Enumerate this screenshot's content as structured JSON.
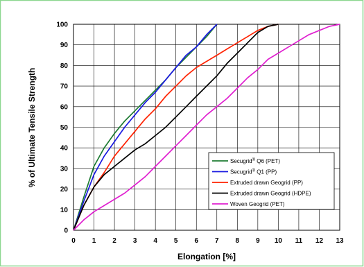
{
  "chart_data": {
    "type": "line",
    "title": "",
    "xlabel": "Elongation [%]",
    "ylabel": "% of Ultimate Tensile Strength",
    "xlim": [
      0,
      13
    ],
    "ylim": [
      0,
      100
    ],
    "xticks": [
      "0",
      "1",
      "2",
      "3",
      "4",
      "5",
      "6",
      "7",
      "8",
      "9",
      "10",
      "11",
      "12",
      "13"
    ],
    "yticks": [
      "0",
      "10",
      "20",
      "30",
      "40",
      "50",
      "60",
      "70",
      "80",
      "90",
      "100"
    ],
    "grid": true,
    "legend_position": "bottom-right",
    "legend": [
      {
        "name_main": "Secugrid",
        "name_sup": "®",
        "name_rest": " Q6 (PET)",
        "color": "#1E7B33"
      },
      {
        "name_main": "Secugrid",
        "name_sup": "®",
        "name_rest": " Q1 (PP)",
        "color": "#1A1AE0"
      },
      {
        "name_main": "Extruded drawn Geogrid (PP)",
        "name_sup": "",
        "name_rest": "",
        "color": "#FF2200"
      },
      {
        "name_main": "Extruded drawn Geogrid (HDPE)",
        "name_sup": "",
        "name_rest": "",
        "color": "#000000"
      },
      {
        "name_main": "Woven Geogrid (PET)",
        "name_sup": "",
        "name_rest": "",
        "color": "#E020D0"
      }
    ],
    "series": [
      {
        "color": "#1E7B33",
        "points": [
          [
            0,
            0
          ],
          [
            0.5,
            16
          ],
          [
            1,
            31
          ],
          [
            1.5,
            40
          ],
          [
            2,
            47
          ],
          [
            2.5,
            53
          ],
          [
            3,
            58
          ],
          [
            3.5,
            63
          ],
          [
            4,
            68
          ],
          [
            4.5,
            73
          ],
          [
            5,
            79
          ],
          [
            5.5,
            84
          ],
          [
            6,
            89
          ],
          [
            6.5,
            94
          ],
          [
            7,
            100
          ]
        ]
      },
      {
        "color": "#1A1AE0",
        "points": [
          [
            0,
            0
          ],
          [
            0.5,
            14
          ],
          [
            1,
            27
          ],
          [
            1.5,
            36
          ],
          [
            2,
            43
          ],
          [
            2.5,
            50
          ],
          [
            3,
            56
          ],
          [
            3.5,
            62
          ],
          [
            4,
            67
          ],
          [
            4.5,
            73
          ],
          [
            5,
            79
          ],
          [
            5.5,
            85
          ],
          [
            6,
            89
          ],
          [
            6.5,
            95
          ],
          [
            7,
            100
          ]
        ]
      },
      {
        "color": "#FF2200",
        "points": [
          [
            0,
            0
          ],
          [
            0.5,
            12
          ],
          [
            1,
            21
          ],
          [
            1.5,
            28
          ],
          [
            2,
            36
          ],
          [
            2.5,
            42
          ],
          [
            3,
            48
          ],
          [
            3.5,
            54
          ],
          [
            4,
            59
          ],
          [
            4.5,
            65
          ],
          [
            5,
            70
          ],
          [
            5.5,
            75
          ],
          [
            6,
            79
          ],
          [
            6.5,
            82
          ],
          [
            7,
            85
          ],
          [
            7.5,
            88
          ],
          [
            8,
            91
          ],
          [
            8.5,
            94
          ],
          [
            9,
            97
          ],
          [
            9.5,
            99
          ],
          [
            10,
            100
          ]
        ]
      },
      {
        "color": "#000000",
        "points": [
          [
            0,
            0
          ],
          [
            0.5,
            12
          ],
          [
            1,
            21
          ],
          [
            1.5,
            27
          ],
          [
            2,
            31
          ],
          [
            2.5,
            35
          ],
          [
            3,
            39
          ],
          [
            3.5,
            42
          ],
          [
            4,
            46
          ],
          [
            4.5,
            50
          ],
          [
            5,
            55
          ],
          [
            5.5,
            60
          ],
          [
            6,
            65
          ],
          [
            6.5,
            70
          ],
          [
            7,
            75
          ],
          [
            7.5,
            81
          ],
          [
            8,
            86
          ],
          [
            8.5,
            91
          ],
          [
            9,
            96
          ],
          [
            9.5,
            99
          ],
          [
            10,
            100
          ]
        ]
      },
      {
        "color": "#E020D0",
        "points": [
          [
            0,
            0
          ],
          [
            0.5,
            5
          ],
          [
            1,
            9
          ],
          [
            1.5,
            12
          ],
          [
            2,
            15
          ],
          [
            2.5,
            18
          ],
          [
            3,
            22
          ],
          [
            3.5,
            26
          ],
          [
            4,
            31
          ],
          [
            4.5,
            36
          ],
          [
            5,
            41
          ],
          [
            5.5,
            46
          ],
          [
            6,
            51
          ],
          [
            6.5,
            56
          ],
          [
            7,
            60
          ],
          [
            7.5,
            64
          ],
          [
            8,
            69
          ],
          [
            8.5,
            74
          ],
          [
            9,
            78
          ],
          [
            9.5,
            83
          ],
          [
            10,
            86
          ],
          [
            10.5,
            89
          ],
          [
            11,
            92
          ],
          [
            11.5,
            95
          ],
          [
            12,
            97
          ],
          [
            12.5,
            99
          ],
          [
            13,
            100
          ]
        ]
      }
    ]
  }
}
